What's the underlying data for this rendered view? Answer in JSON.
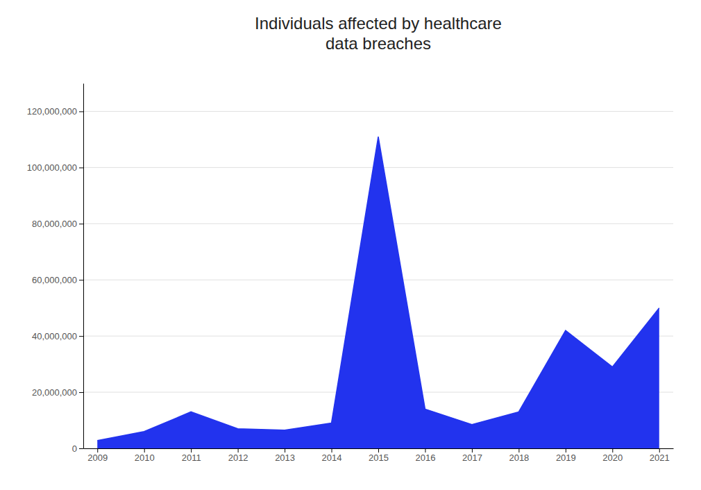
{
  "chart_data": {
    "type": "area",
    "title": "Individuals affected by healthcare\ndata breaches",
    "x": [
      2009,
      2010,
      2011,
      2012,
      2013,
      2014,
      2015,
      2016,
      2017,
      2018,
      2019,
      2020,
      2021
    ],
    "values": [
      2800000,
      6000000,
      13000000,
      7000000,
      6500000,
      9000000,
      111000000,
      14000000,
      8500000,
      13000000,
      42000000,
      29000000,
      50000000
    ],
    "color": "#2233ee",
    "xlim": [
      2008.7,
      2021.3
    ],
    "xticks": [
      2009,
      2010,
      2011,
      2012,
      2013,
      2014,
      2015,
      2016,
      2017,
      2018,
      2019,
      2020,
      2021
    ],
    "ylim": [
      0,
      130000000
    ],
    "yticks": [
      0,
      {
        "value": 20000000,
        "label": "20,000,000"
      },
      {
        "value": 40000000,
        "label": "40,000,000"
      },
      {
        "value": 60000000,
        "label": "60,000,000"
      },
      {
        "value": 80000000,
        "label": "80,000,000"
      },
      {
        "value": 100000000,
        "label": "100,000,000"
      },
      {
        "value": 120000000,
        "label": "120,000,000"
      }
    ],
    "grid": true
  }
}
